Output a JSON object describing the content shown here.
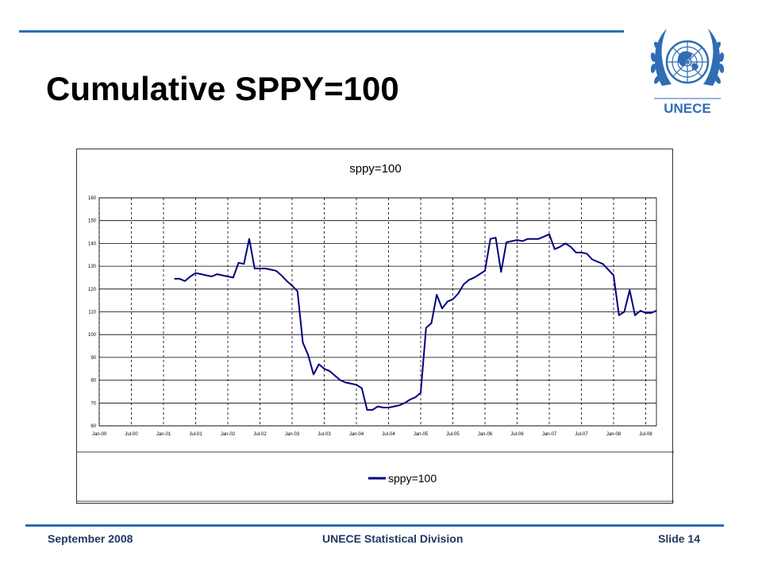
{
  "slide": {
    "title": "Cumulative SPPY=100",
    "footer_left": "September 2008",
    "footer_center": "UNECE Statistical Division",
    "footer_right": "Slide 14"
  },
  "logo": {
    "text": "UNECE",
    "icon": "un-emblem-icon"
  },
  "colors": {
    "accent": "#2f6db4",
    "series": "#000080",
    "footer_text": "#1f3864"
  },
  "chart_data": {
    "type": "line",
    "title": "sppy=100",
    "xlabel": "",
    "ylabel": "",
    "ylim": [
      60,
      160
    ],
    "yticks": [
      60,
      70,
      80,
      90,
      100,
      110,
      120,
      130,
      140,
      150,
      160
    ],
    "xtick_labels": [
      "Jan-00",
      "Jul-00",
      "Jan-01",
      "Jul-01",
      "Jan-02",
      "Jul-02",
      "Jan-03",
      "Jul-03",
      "Jan-04",
      "Jul-04",
      "Jan-05",
      "Jul-05",
      "Jan-06",
      "Jul-06",
      "Jan-07",
      "Jul-07",
      "Jan-08",
      "Jul-08"
    ],
    "x_start": "Jan-00",
    "x_end": "Sep-08",
    "grid": "horizontal solid, vertical dashed",
    "legend": "bottom",
    "series": [
      {
        "name": "sppy=100",
        "x": [
          "Mar-01",
          "Apr-01",
          "May-01",
          "Jun-01",
          "Jul-01",
          "Aug-01",
          "Sep-01",
          "Oct-01",
          "Nov-01",
          "Dec-01",
          "Jan-02",
          "Feb-02",
          "Mar-02",
          "Apr-02",
          "May-02",
          "Jun-02",
          "Jul-02",
          "Aug-02",
          "Sep-02",
          "Oct-02",
          "Nov-02",
          "Dec-02",
          "Jan-03",
          "Feb-03",
          "Mar-03",
          "Apr-03",
          "May-03",
          "Jun-03",
          "Jul-03",
          "Aug-03",
          "Sep-03",
          "Oct-03",
          "Nov-03",
          "Dec-03",
          "Jan-04",
          "Feb-04",
          "Mar-04",
          "Apr-04",
          "May-04",
          "Jun-04",
          "Jul-04",
          "Aug-04",
          "Sep-04",
          "Oct-04",
          "Nov-04",
          "Dec-04",
          "Jan-05",
          "Feb-05",
          "Mar-05",
          "Apr-05",
          "May-05",
          "Jun-05",
          "Jul-05",
          "Aug-05",
          "Sep-05",
          "Oct-05",
          "Nov-05",
          "Dec-05",
          "Jan-06",
          "Feb-06",
          "Mar-06",
          "Apr-06",
          "May-06",
          "Jun-06",
          "Jul-06",
          "Aug-06",
          "Sep-06",
          "Oct-06",
          "Nov-06",
          "Dec-06",
          "Jan-07",
          "Feb-07",
          "Mar-07",
          "Apr-07",
          "May-07",
          "Jun-07",
          "Jul-07",
          "Aug-07",
          "Sep-07",
          "Oct-07",
          "Nov-07",
          "Dec-07",
          "Jan-08",
          "Feb-08",
          "Mar-08",
          "Apr-08",
          "May-08",
          "Jun-08",
          "Jul-08",
          "Aug-08",
          "Sep-08"
        ],
        "values": [
          124.5,
          124.5,
          123.5,
          125.5,
          127,
          126.5,
          126,
          125.5,
          126.5,
          126,
          125.5,
          125,
          131.5,
          131,
          142,
          129,
          129,
          129,
          128.5,
          128,
          126,
          123.5,
          121.5,
          119,
          96.5,
          91,
          82.5,
          87,
          85,
          84,
          82,
          80,
          79,
          78.5,
          78,
          76.5,
          67,
          67,
          68.5,
          68,
          68,
          68.5,
          69,
          70,
          71.5,
          72.5,
          74.5,
          103,
          105,
          117.5,
          111.5,
          114.5,
          115.5,
          118,
          122,
          124,
          125,
          126.5,
          128,
          142,
          142.5,
          127.5,
          140.5,
          141,
          141.5,
          141,
          142,
          142,
          142,
          143,
          144,
          137.5,
          138.5,
          140,
          138.5,
          136,
          136,
          135.5,
          133,
          132,
          131,
          128.5,
          126,
          108.5,
          110,
          119.5,
          108.5,
          110.5,
          109.5,
          109.5,
          110.5
        ]
      }
    ]
  }
}
